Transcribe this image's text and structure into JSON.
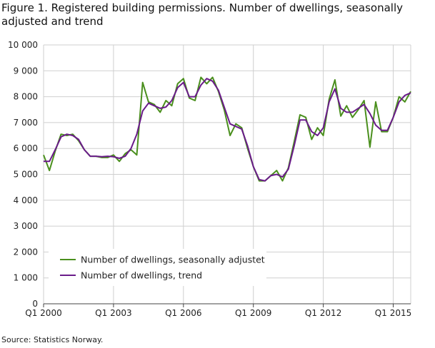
{
  "title": "Figure 1. Registered building permissions. Number of dwellings, seasonally adjusted and trend",
  "source": "Source: Statistics Norway.",
  "chart_data": {
    "type": "line",
    "title": "Figure 1. Registered building permissions. Number of dwellings, seasonally adjusted and trend",
    "xlabel": "",
    "ylabel": "",
    "x_ticks": [
      "Q1 2000",
      "Q1 2003",
      "Q1 2006",
      "Q1 2009",
      "Q1 2012",
      "Q1 2015"
    ],
    "y_ticks": [
      "0",
      "1 000",
      "2 000",
      "3 000",
      "4 000",
      "5 000",
      "6 000",
      "7 000",
      "8 000",
      "9 000",
      "10 000"
    ],
    "ylim": [
      0,
      10000
    ],
    "grid": true,
    "legend_position": "bottom-left",
    "x": [
      "Q1 2000",
      "Q2 2000",
      "Q3 2000",
      "Q4 2000",
      "Q1 2001",
      "Q2 2001",
      "Q3 2001",
      "Q4 2001",
      "Q1 2002",
      "Q2 2002",
      "Q3 2002",
      "Q4 2002",
      "Q1 2003",
      "Q2 2003",
      "Q3 2003",
      "Q4 2003",
      "Q1 2004",
      "Q2 2004",
      "Q3 2004",
      "Q4 2004",
      "Q1 2005",
      "Q2 2005",
      "Q3 2005",
      "Q4 2005",
      "Q1 2006",
      "Q2 2006",
      "Q3 2006",
      "Q4 2006",
      "Q1 2007",
      "Q2 2007",
      "Q3 2007",
      "Q4 2007",
      "Q1 2008",
      "Q2 2008",
      "Q3 2008",
      "Q4 2008",
      "Q1 2009",
      "Q2 2009",
      "Q3 2009",
      "Q4 2009",
      "Q1 2010",
      "Q2 2010",
      "Q3 2010",
      "Q4 2010",
      "Q1 2011",
      "Q2 2011",
      "Q3 2011",
      "Q4 2011",
      "Q1 2012",
      "Q2 2012",
      "Q3 2012",
      "Q4 2012",
      "Q1 2013",
      "Q2 2013",
      "Q3 2013",
      "Q4 2013",
      "Q1 2014",
      "Q2 2014",
      "Q3 2014",
      "Q4 2014",
      "Q1 2015",
      "Q2 2015",
      "Q3 2015",
      "Q4 2015"
    ],
    "series": [
      {
        "name": "Number of dwellings, seasonally adjustet",
        "color": "#4a8f1d",
        "values": [
          5750,
          5150,
          5900,
          6550,
          6500,
          6550,
          6300,
          5950,
          5700,
          5700,
          5650,
          5650,
          5750,
          5500,
          5800,
          5950,
          5750,
          8550,
          7800,
          7700,
          7400,
          7850,
          7650,
          8500,
          8700,
          7950,
          7850,
          8750,
          8500,
          8750,
          8200,
          7500,
          6500,
          6950,
          6800,
          6000,
          5300,
          4750,
          4750,
          4950,
          5150,
          4750,
          5250,
          6250,
          7300,
          7200,
          6350,
          6800,
          6500,
          7900,
          8650,
          7250,
          7650,
          7200,
          7500,
          7850,
          6050,
          7800,
          6650,
          6650,
          7200,
          8000,
          7800,
          8200
        ]
      },
      {
        "name": "Number of dwellings, trend",
        "color": "#6a1b8a",
        "values": [
          5500,
          5500,
          5950,
          6450,
          6550,
          6500,
          6350,
          5950,
          5700,
          5700,
          5680,
          5700,
          5680,
          5620,
          5700,
          6000,
          6550,
          7450,
          7750,
          7650,
          7550,
          7600,
          7850,
          8350,
          8550,
          8000,
          8000,
          8450,
          8700,
          8600,
          8250,
          7600,
          6950,
          6850,
          6750,
          6100,
          5300,
          4800,
          4750,
          4950,
          5000,
          4900,
          5200,
          6100,
          7100,
          7100,
          6650,
          6500,
          6800,
          7800,
          8300,
          7550,
          7400,
          7400,
          7550,
          7700,
          7350,
          6900,
          6700,
          6700,
          7200,
          7800,
          8050,
          8150
        ]
      }
    ]
  }
}
